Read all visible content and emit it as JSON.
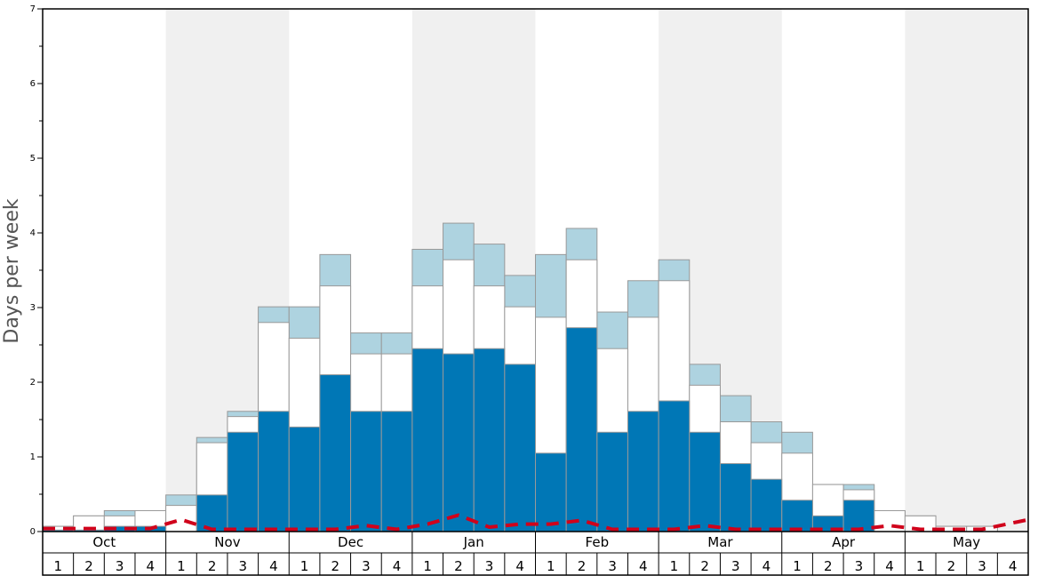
{
  "chart_data": {
    "type": "bar",
    "ylabel": "Days per week",
    "ylim": [
      0,
      7
    ],
    "yticks": [
      "0",
      "1",
      "2",
      "3",
      "4",
      "5",
      "6",
      "7"
    ],
    "months": [
      "Oct",
      "Nov",
      "Dec",
      "Jan",
      "Feb",
      "Mar",
      "Apr",
      "May"
    ],
    "weeks": [
      "1",
      "2",
      "3",
      "4"
    ],
    "series": [
      {
        "name": "",
        "color": "#0077b6",
        "values": [
          0.02,
          0.02,
          0.07,
          0.07,
          0.0,
          0.49,
          1.33,
          1.61,
          1.4,
          2.1,
          1.61,
          1.61,
          2.45,
          2.38,
          2.45,
          2.24,
          1.05,
          2.73,
          1.33,
          1.61,
          1.75,
          1.33,
          0.91,
          0.7,
          0.42,
          0.21,
          0.42,
          0.0,
          0.0,
          0.0,
          0.0,
          0.0
        ]
      },
      {
        "name": "",
        "color": "#ffffff",
        "values": [
          0.07,
          0.21,
          0.21,
          0.28,
          0.35,
          1.19,
          1.54,
          2.8,
          2.59,
          3.29,
          2.38,
          2.38,
          3.29,
          3.64,
          3.29,
          3.01,
          2.87,
          3.64,
          2.45,
          2.87,
          3.36,
          1.96,
          1.47,
          1.19,
          1.05,
          0.63,
          0.56,
          0.28,
          0.21,
          0.07,
          0.07,
          0.0
        ]
      },
      {
        "name": "",
        "color": "#aed3e0",
        "values": [
          0.07,
          0.21,
          0.28,
          0.28,
          0.49,
          1.26,
          1.61,
          3.01,
          3.01,
          3.71,
          2.66,
          2.66,
          3.78,
          4.13,
          3.85,
          3.43,
          3.71,
          4.06,
          2.94,
          3.36,
          3.64,
          2.24,
          1.82,
          1.47,
          1.33,
          0.63,
          0.63,
          0.28,
          0.21,
          0.07,
          0.07,
          0.0
        ]
      },
      {
        "name": "",
        "type": "line",
        "color": "#d0021b",
        "values": [
          0.04,
          0.04,
          0.04,
          0.04,
          0.16,
          0.03,
          0.03,
          0.03,
          0.03,
          0.03,
          0.08,
          0.03,
          0.1,
          0.22,
          0.06,
          0.1,
          0.1,
          0.15,
          0.03,
          0.03,
          0.03,
          0.08,
          0.03,
          0.03,
          0.03,
          0.03,
          0.03,
          0.08,
          0.03,
          0.03,
          0.03,
          0.16
        ]
      }
    ]
  }
}
